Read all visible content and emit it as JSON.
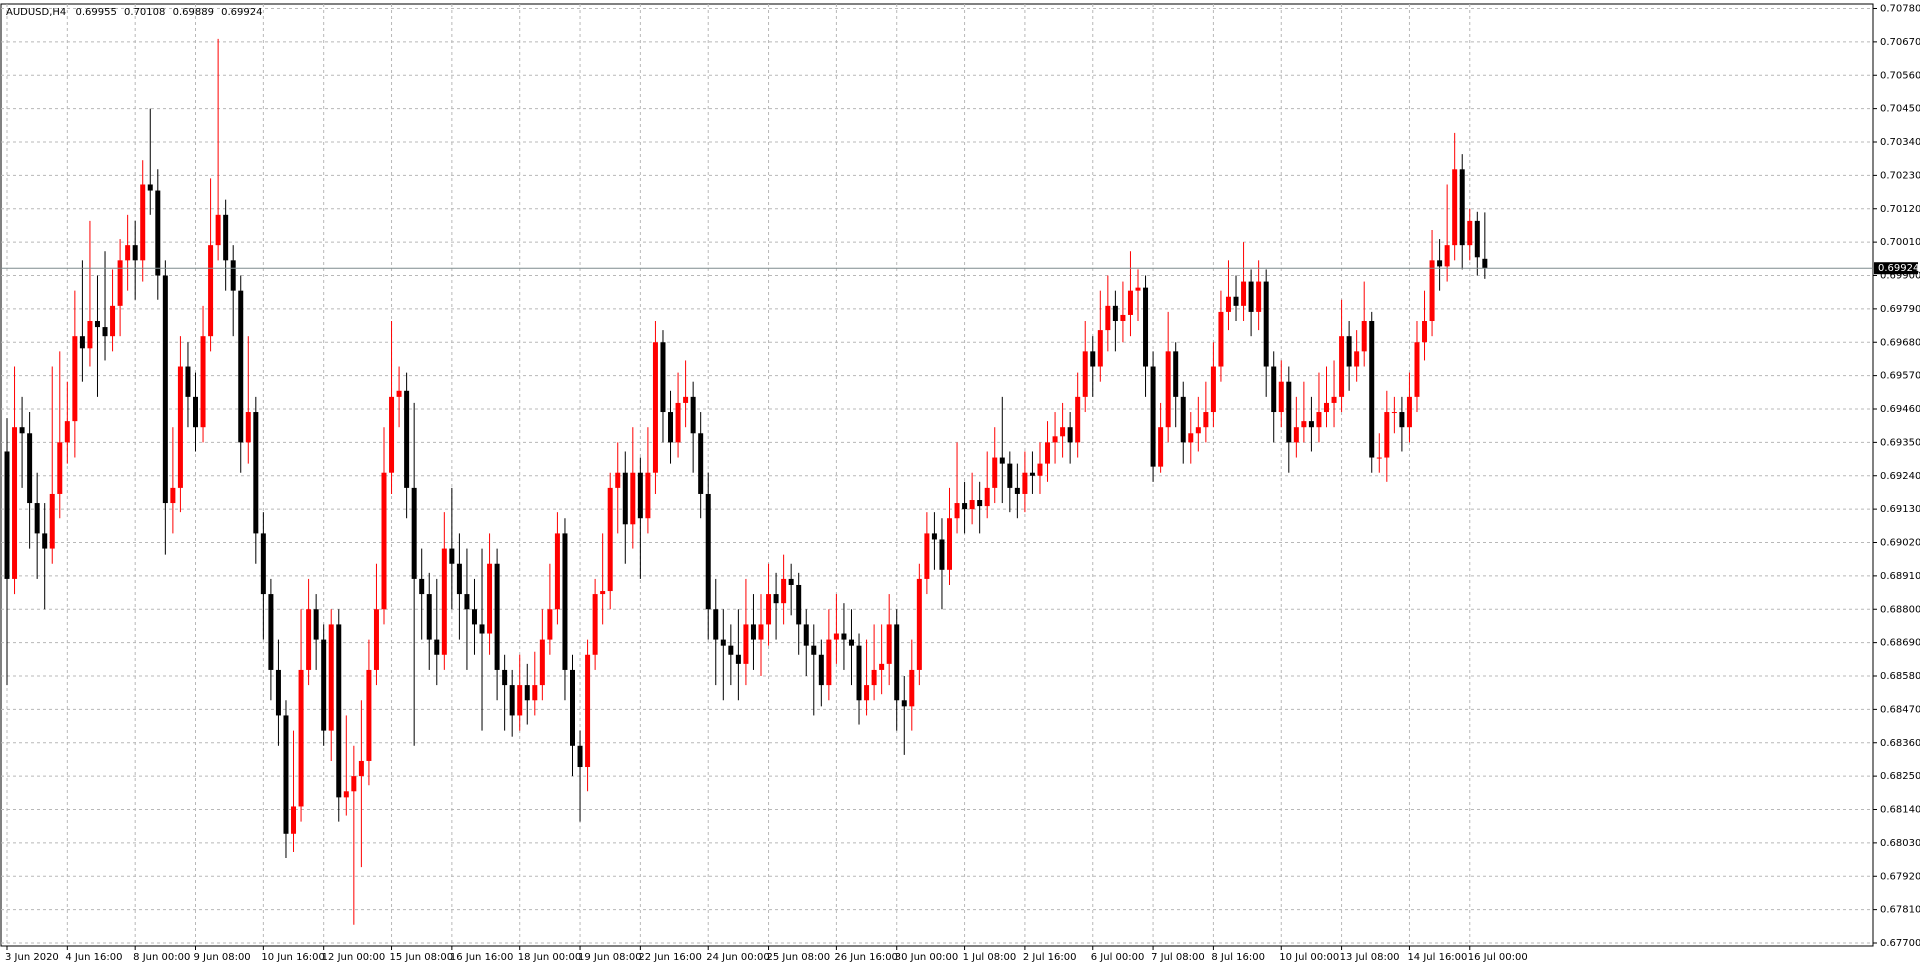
{
  "chart_data": {
    "type": "candlestick",
    "title": "AUDUSD,H4",
    "info": [
      0.69955,
      0.70108,
      0.69889,
      0.69924
    ],
    "categories": [
      "3 Jun 2020",
      null,
      null,
      null,
      null,
      null,
      null,
      null,
      "4 Jun 16:00",
      null,
      null,
      null,
      null,
      null,
      null,
      null,
      null,
      "8 Jun 00:00",
      null,
      null,
      null,
      null,
      null,
      null,
      null,
      "9 Jun 08:00",
      null,
      null,
      null,
      null,
      null,
      null,
      null,
      null,
      "10 Jun 16:00",
      null,
      null,
      null,
      null,
      null,
      null,
      null,
      "12 Jun 00:00",
      null,
      null,
      null,
      null,
      null,
      null,
      null,
      null,
      "15 Jun 08:00",
      null,
      null,
      null,
      null,
      null,
      null,
      null,
      "16 Jun 16:00",
      null,
      null,
      null,
      null,
      null,
      null,
      null,
      null,
      "18 Jun 00:00",
      null,
      null,
      null,
      null,
      null,
      null,
      null,
      "19 Jun 08:00",
      null,
      null,
      null,
      null,
      null,
      null,
      null,
      "22 Jun 16:00",
      null,
      null,
      null,
      null,
      null,
      null,
      null,
      null,
      "24 Jun 00:00",
      null,
      null,
      null,
      null,
      null,
      null,
      null,
      "25 Jun 08:00",
      null,
      null,
      null,
      null,
      null,
      null,
      null,
      null,
      "26 Jun 16:00",
      null,
      null,
      null,
      null,
      null,
      null,
      null,
      "30 Jun 00:00",
      null,
      null,
      null,
      null,
      null,
      null,
      null,
      null,
      "1 Jul 08:00",
      null,
      null,
      null,
      null,
      null,
      null,
      null,
      "2 Jul 16:00",
      null,
      null,
      null,
      null,
      null,
      null,
      null,
      null,
      "6 Jul 00:00",
      null,
      null,
      null,
      null,
      null,
      null,
      null,
      "7 Jul 08:00",
      null,
      null,
      null,
      null,
      null,
      null,
      null,
      "8 Jul 16:00",
      null,
      null,
      null,
      null,
      null,
      null,
      null,
      null,
      "10 Jul 00:00",
      null,
      null,
      null,
      null,
      null,
      null,
      null,
      "13 Jul 08:00",
      null,
      null,
      null,
      null,
      null,
      null,
      null,
      null,
      "14 Jul 16:00",
      null,
      null,
      null,
      null,
      null,
      null,
      null,
      "16 Jul 00:00",
      null,
      null
    ],
    "open": [
      0.6932,
      0.689,
      0.694,
      0.6938,
      0.6915,
      0.6905,
      0.69,
      0.6918,
      0.6935,
      0.6942,
      0.697,
      0.6966,
      0.6975,
      0.6973,
      0.697,
      0.698,
      0.6995,
      0.7,
      0.6995,
      0.702,
      0.7018,
      0.699,
      0.6915,
      0.692,
      0.696,
      0.695,
      0.694,
      0.697,
      0.7,
      0.701,
      0.6995,
      0.6985,
      0.6935,
      0.6945,
      0.6905,
      0.6885,
      0.686,
      0.6845,
      0.6806,
      0.6815,
      0.686,
      0.688,
      0.687,
      0.684,
      0.6875,
      0.6818,
      0.682,
      0.6825,
      0.683,
      0.686,
      0.688,
      0.6925,
      0.695,
      0.6952,
      0.692,
      0.689,
      0.6885,
      0.687,
      0.6865,
      0.69,
      0.6895,
      0.6885,
      0.688,
      0.6875,
      0.6872,
      0.6895,
      0.686,
      0.6855,
      0.6845,
      0.6855,
      0.685,
      0.6855,
      0.687,
      0.688,
      0.6905,
      0.686,
      0.6835,
      0.6828,
      0.6865,
      0.6885,
      0.6886,
      0.692,
      0.6925,
      0.6908,
      0.6925,
      0.691,
      0.6925,
      0.6968,
      0.6945,
      0.6935,
      0.6948,
      0.695,
      0.6938,
      0.6918,
      0.688,
      0.687,
      0.6868,
      0.6865,
      0.6862,
      0.6875,
      0.687,
      0.6875,
      0.6885,
      0.6882,
      0.689,
      0.6888,
      0.6875,
      0.6868,
      0.6865,
      0.6855,
      0.687,
      0.6872,
      0.687,
      0.6868,
      0.685,
      0.6855,
      0.686,
      0.6862,
      0.6875,
      0.685,
      0.6848,
      0.686,
      0.689,
      0.6905,
      0.6903,
      0.6893,
      0.691,
      0.6915,
      0.6913,
      0.6916,
      0.6914,
      0.692,
      0.693,
      0.6928,
      0.692,
      0.6918,
      0.6925,
      0.6924,
      0.6928,
      0.6935,
      0.6937,
      0.694,
      0.6935,
      0.695,
      0.6965,
      0.696,
      0.6972,
      0.698,
      0.6975,
      0.6977,
      0.6985,
      0.6986,
      0.696,
      0.6927,
      0.694,
      0.6965,
      0.695,
      0.6935,
      0.6938,
      0.694,
      0.6945,
      0.696,
      0.6978,
      0.6983,
      0.698,
      0.6988,
      0.6978,
      0.6988,
      0.696,
      0.6945,
      0.6955,
      0.6935,
      0.694,
      0.6942,
      0.694,
      0.6945,
      0.6948,
      0.695,
      0.697,
      0.696,
      0.6965,
      0.6975,
      0.693,
      0.693,
      0.6945,
      0.6945,
      0.694,
      0.695,
      0.6968,
      0.6975,
      0.6995,
      0.6993,
      0.7,
      0.7025,
      0.7,
      0.7008,
      0.69955
    ],
    "high": [
      0.6943,
      0.696,
      0.695,
      0.6945,
      0.6925,
      0.6915,
      0.696,
      0.6965,
      0.6955,
      0.6985,
      0.6995,
      0.7008,
      0.699,
      0.6998,
      0.6992,
      0.7002,
      0.701,
      0.7008,
      0.7028,
      0.7045,
      0.7025,
      0.6995,
      0.694,
      0.697,
      0.6968,
      0.6958,
      0.698,
      0.7022,
      0.7068,
      0.7015,
      0.7,
      0.699,
      0.697,
      0.695,
      0.6912,
      0.689,
      0.687,
      0.685,
      0.684,
      0.688,
      0.689,
      0.6885,
      0.6875,
      0.688,
      0.688,
      0.6845,
      0.6835,
      0.685,
      0.687,
      0.6895,
      0.694,
      0.6975,
      0.696,
      0.6958,
      0.6948,
      0.69,
      0.6892,
      0.689,
      0.6912,
      0.692,
      0.6905,
      0.69,
      0.689,
      0.69,
      0.6905,
      0.69,
      0.6865,
      0.686,
      0.6865,
      0.6862,
      0.6866,
      0.688,
      0.6895,
      0.6912,
      0.691,
      0.6865,
      0.684,
      0.687,
      0.689,
      0.6905,
      0.6925,
      0.6935,
      0.6932,
      0.694,
      0.693,
      0.694,
      0.6975,
      0.6972,
      0.6952,
      0.6958,
      0.6962,
      0.6955,
      0.6945,
      0.6925,
      0.689,
      0.688,
      0.6875,
      0.688,
      0.689,
      0.6885,
      0.6885,
      0.6895,
      0.6892,
      0.6898,
      0.6895,
      0.6892,
      0.688,
      0.6875,
      0.687,
      0.688,
      0.6885,
      0.6882,
      0.688,
      0.6872,
      0.687,
      0.6875,
      0.6875,
      0.6885,
      0.688,
      0.6858,
      0.687,
      0.6895,
      0.6912,
      0.6912,
      0.691,
      0.692,
      0.6935,
      0.6922,
      0.6925,
      0.6922,
      0.6932,
      0.694,
      0.695,
      0.6932,
      0.6928,
      0.6932,
      0.6932,
      0.6935,
      0.6942,
      0.6945,
      0.6948,
      0.6945,
      0.6958,
      0.6975,
      0.697,
      0.6985,
      0.699,
      0.6985,
      0.6988,
      0.6998,
      0.6992,
      0.699,
      0.6965,
      0.6948,
      0.6978,
      0.6968,
      0.6955,
      0.6945,
      0.695,
      0.6955,
      0.6968,
      0.6985,
      0.6995,
      0.699,
      0.7001,
      0.6992,
      0.6995,
      0.6992,
      0.6965,
      0.6962,
      0.696,
      0.695,
      0.6955,
      0.695,
      0.6958,
      0.696,
      0.6962,
      0.6982,
      0.6975,
      0.6972,
      0.6988,
      0.6978,
      0.6938,
      0.6952,
      0.695,
      0.695,
      0.6958,
      0.6975,
      0.6985,
      0.7005,
      0.7002,
      0.702,
      0.7037,
      0.703,
      0.7012,
      0.7011,
      0.70108
    ],
    "low": [
      0.6855,
      0.6885,
      0.692,
      0.69,
      0.689,
      0.688,
      0.6895,
      0.691,
      0.6928,
      0.693,
      0.6955,
      0.696,
      0.695,
      0.6962,
      0.6965,
      0.697,
      0.6985,
      0.6982,
      0.6988,
      0.701,
      0.6982,
      0.6898,
      0.6905,
      0.6912,
      0.694,
      0.6932,
      0.6935,
      0.6965,
      0.6995,
      0.6985,
      0.697,
      0.6925,
      0.6928,
      0.6895,
      0.687,
      0.685,
      0.6835,
      0.6798,
      0.68,
      0.681,
      0.6855,
      0.686,
      0.6835,
      0.683,
      0.681,
      0.6812,
      0.6776,
      0.6795,
      0.6822,
      0.6855,
      0.6875,
      0.6918,
      0.694,
      0.691,
      0.6835,
      0.687,
      0.686,
      0.6855,
      0.686,
      0.688,
      0.687,
      0.686,
      0.6865,
      0.684,
      0.6865,
      0.685,
      0.684,
      0.6838,
      0.684,
      0.6842,
      0.6845,
      0.685,
      0.6865,
      0.6875,
      0.685,
      0.6825,
      0.681,
      0.682,
      0.686,
      0.6875,
      0.688,
      0.6905,
      0.6895,
      0.69,
      0.689,
      0.6905,
      0.6918,
      0.6935,
      0.6928,
      0.693,
      0.694,
      0.6925,
      0.691,
      0.687,
      0.6855,
      0.685,
      0.6855,
      0.685,
      0.6855,
      0.686,
      0.6858,
      0.6868,
      0.687,
      0.6875,
      0.6878,
      0.6865,
      0.6858,
      0.6845,
      0.6848,
      0.685,
      0.6862,
      0.686,
      0.6855,
      0.6842,
      0.6845,
      0.685,
      0.6852,
      0.6855,
      0.684,
      0.6832,
      0.684,
      0.6855,
      0.6885,
      0.6893,
      0.688,
      0.6888,
      0.6905,
      0.6905,
      0.6908,
      0.6905,
      0.691,
      0.6915,
      0.6915,
      0.6912,
      0.691,
      0.6912,
      0.6918,
      0.6918,
      0.6922,
      0.6928,
      0.693,
      0.6928,
      0.693,
      0.6945,
      0.695,
      0.6955,
      0.6965,
      0.6965,
      0.6968,
      0.697,
      0.6975,
      0.695,
      0.6922,
      0.6925,
      0.6935,
      0.694,
      0.6928,
      0.6928,
      0.6932,
      0.6935,
      0.694,
      0.6955,
      0.6972,
      0.6975,
      0.6975,
      0.697,
      0.6972,
      0.695,
      0.6935,
      0.694,
      0.6925,
      0.693,
      0.6935,
      0.6932,
      0.6935,
      0.694,
      0.694,
      0.6945,
      0.6952,
      0.6955,
      0.696,
      0.6925,
      0.6925,
      0.6922,
      0.6938,
      0.6932,
      0.6935,
      0.6945,
      0.6962,
      0.697,
      0.6985,
      0.6988,
      0.6995,
      0.6992,
      0.6995,
      0.699,
      0.69889
    ],
    "close": [
      0.689,
      0.694,
      0.6938,
      0.6915,
      0.6905,
      0.69,
      0.6918,
      0.6935,
      0.6942,
      0.697,
      0.6966,
      0.6975,
      0.6973,
      0.697,
      0.698,
      0.6995,
      0.7,
      0.6995,
      0.702,
      0.7018,
      0.699,
      0.6915,
      0.692,
      0.696,
      0.695,
      0.694,
      0.697,
      0.7,
      0.701,
      0.6995,
      0.6985,
      0.6935,
      0.6945,
      0.6905,
      0.6885,
      0.686,
      0.6845,
      0.6806,
      0.6815,
      0.686,
      0.688,
      0.687,
      0.684,
      0.6875,
      0.6818,
      0.682,
      0.6825,
      0.683,
      0.686,
      0.688,
      0.6925,
      0.695,
      0.6952,
      0.692,
      0.689,
      0.6885,
      0.687,
      0.6865,
      0.69,
      0.6895,
      0.6885,
      0.688,
      0.6875,
      0.6872,
      0.6895,
      0.686,
      0.6855,
      0.6845,
      0.6855,
      0.685,
      0.6855,
      0.687,
      0.688,
      0.6905,
      0.686,
      0.6835,
      0.6828,
      0.6865,
      0.6885,
      0.6886,
      0.692,
      0.6925,
      0.6908,
      0.6925,
      0.691,
      0.6925,
      0.6968,
      0.6945,
      0.6935,
      0.6948,
      0.695,
      0.6938,
      0.6918,
      0.688,
      0.687,
      0.6868,
      0.6865,
      0.6862,
      0.6875,
      0.687,
      0.6875,
      0.6885,
      0.6882,
      0.689,
      0.6888,
      0.6875,
      0.6868,
      0.6865,
      0.6855,
      0.687,
      0.6872,
      0.687,
      0.6868,
      0.685,
      0.6855,
      0.686,
      0.6862,
      0.6875,
      0.685,
      0.6848,
      0.686,
      0.689,
      0.6905,
      0.6903,
      0.6893,
      0.691,
      0.6915,
      0.6913,
      0.6916,
      0.6914,
      0.692,
      0.693,
      0.6928,
      0.692,
      0.6918,
      0.6925,
      0.6924,
      0.6928,
      0.6935,
      0.6937,
      0.694,
      0.6935,
      0.695,
      0.6965,
      0.696,
      0.6972,
      0.698,
      0.6975,
      0.6977,
      0.6985,
      0.6986,
      0.696,
      0.6927,
      0.694,
      0.6965,
      0.695,
      0.6935,
      0.6938,
      0.694,
      0.6945,
      0.696,
      0.6978,
      0.6983,
      0.698,
      0.6988,
      0.6978,
      0.6988,
      0.696,
      0.6945,
      0.6955,
      0.6935,
      0.694,
      0.6942,
      0.694,
      0.6945,
      0.6948,
      0.695,
      0.697,
      0.696,
      0.6965,
      0.6975,
      0.693,
      0.693,
      0.6945,
      0.6945,
      0.694,
      0.695,
      0.6968,
      0.6975,
      0.6995,
      0.6993,
      0.7,
      0.7025,
      0.7,
      0.7008,
      0.6996,
      0.69924
    ],
    "up_color": "#ff0000",
    "down_color": "#000000",
    "ylim": [
      0.677,
      0.7078
    ],
    "yticks": [
      {
        "value": 0.7078,
        "label": "0.70780"
      },
      {
        "value": 0.7067,
        "label": "0.70670"
      },
      {
        "value": 0.7056,
        "label": "0.70560"
      },
      {
        "value": 0.7045,
        "label": "0.70450"
      },
      {
        "value": 0.7034,
        "label": "0.70340"
      },
      {
        "value": 0.7023,
        "label": "0.70230"
      },
      {
        "value": 0.7012,
        "label": "0.70120"
      },
      {
        "value": 0.7001,
        "label": "0.70010"
      },
      {
        "value": 0.699,
        "label": "0.69900"
      },
      {
        "value": 0.6979,
        "label": "0.69790"
      },
      {
        "value": 0.6968,
        "label": "0.69680"
      },
      {
        "value": 0.6957,
        "label": "0.69570"
      },
      {
        "value": 0.6946,
        "label": "0.69460"
      },
      {
        "value": 0.6935,
        "label": "0.69350"
      },
      {
        "value": 0.6924,
        "label": "0.69240"
      },
      {
        "value": 0.6913,
        "label": "0.69130"
      },
      {
        "value": 0.6902,
        "label": "0.69020"
      },
      {
        "value": 0.6891,
        "label": "0.68910"
      },
      {
        "value": 0.688,
        "label": "0.68800"
      },
      {
        "value": 0.6869,
        "label": "0.68690"
      },
      {
        "value": 0.6858,
        "label": "0.68580"
      },
      {
        "value": 0.6847,
        "label": "0.68470"
      },
      {
        "value": 0.6836,
        "label": "0.68360"
      },
      {
        "value": 0.6825,
        "label": "0.68250"
      },
      {
        "value": 0.6814,
        "label": "0.68140"
      },
      {
        "value": 0.6803,
        "label": "0.68030"
      },
      {
        "value": 0.6792,
        "label": "0.67920"
      },
      {
        "value": 0.6781,
        "label": "0.67810"
      },
      {
        "value": 0.677,
        "label": "0.67700"
      }
    ],
    "grid": true,
    "last_price": 0.69924
  }
}
